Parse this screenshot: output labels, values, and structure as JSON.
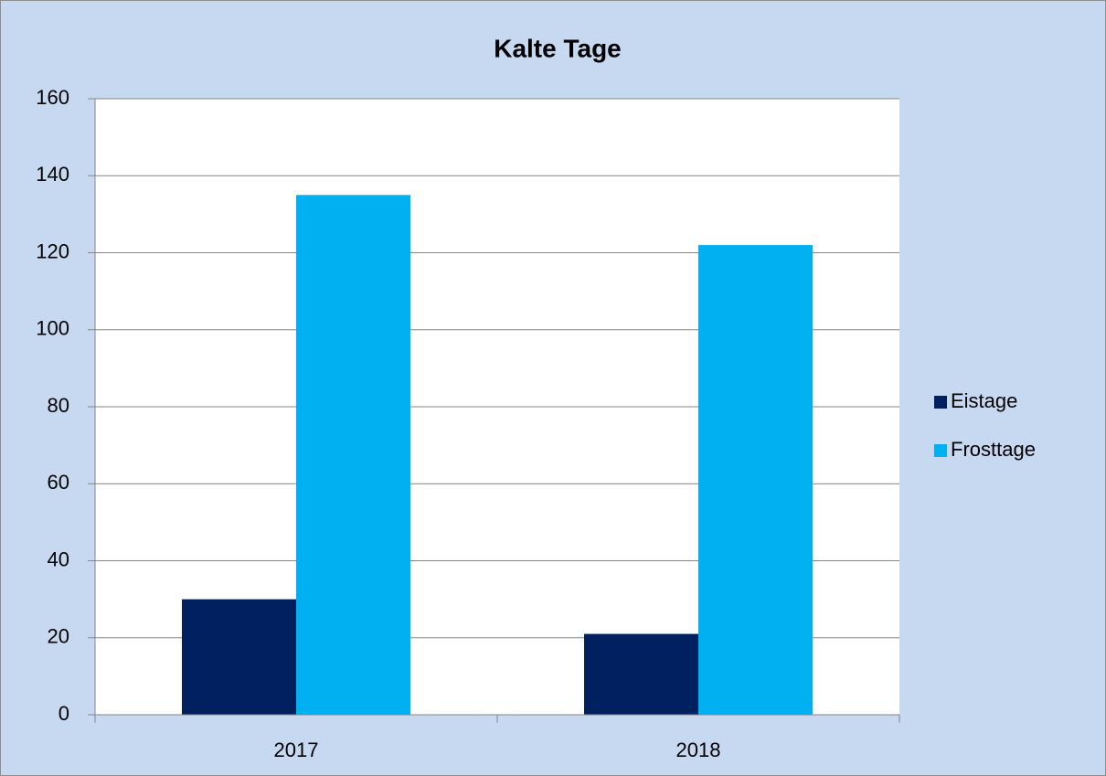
{
  "chart_data": {
    "type": "bar",
    "title": "Kalte Tage",
    "categories": [
      "2017",
      "2018"
    ],
    "series": [
      {
        "name": "Eistage",
        "color": "#002060",
        "values": [
          30,
          21
        ]
      },
      {
        "name": "Frosttage",
        "color": "#00b0f0",
        "values": [
          135,
          122
        ]
      }
    ],
    "ylim": [
      0,
      160
    ],
    "yticks": [
      0,
      20,
      40,
      60,
      80,
      100,
      120,
      140,
      160
    ],
    "grid": true,
    "legend": "right"
  }
}
